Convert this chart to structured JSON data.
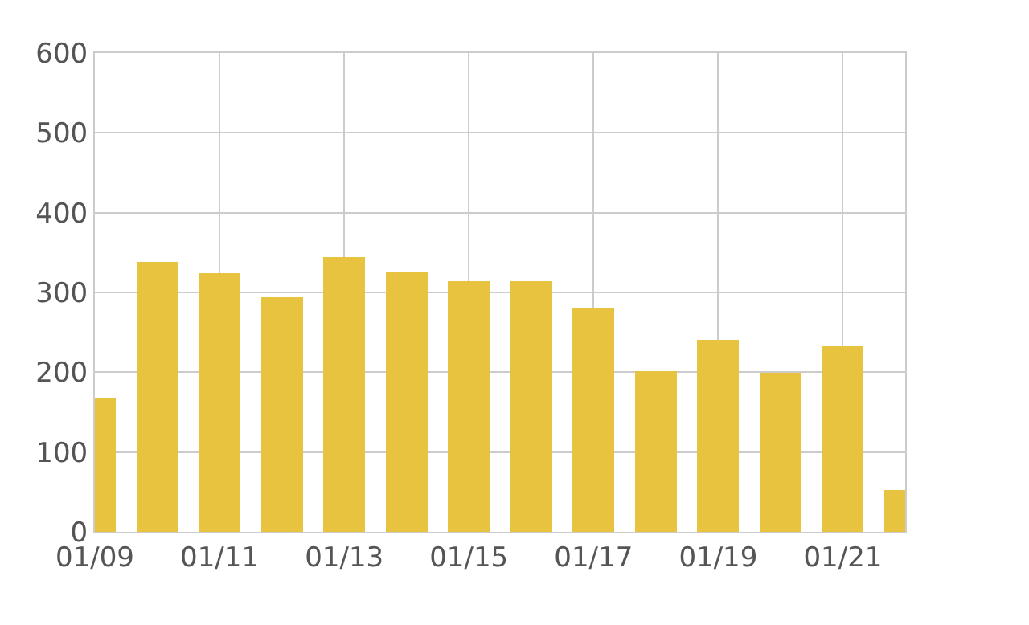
{
  "chart_data": {
    "type": "bar",
    "categories": [
      "01/09",
      null,
      "01/11",
      null,
      "01/13",
      null,
      "01/15",
      null,
      "01/17",
      null,
      "01/19",
      null,
      "01/21",
      null
    ],
    "values": [
      167,
      338,
      324,
      294,
      344,
      326,
      314,
      314,
      280,
      201,
      241,
      199,
      233,
      52
    ],
    "color": "#e8c33f",
    "ylim": [
      0,
      600
    ],
    "yticks": [
      0,
      100,
      200,
      300,
      400,
      500,
      600
    ],
    "grid": true,
    "legend": false
  }
}
